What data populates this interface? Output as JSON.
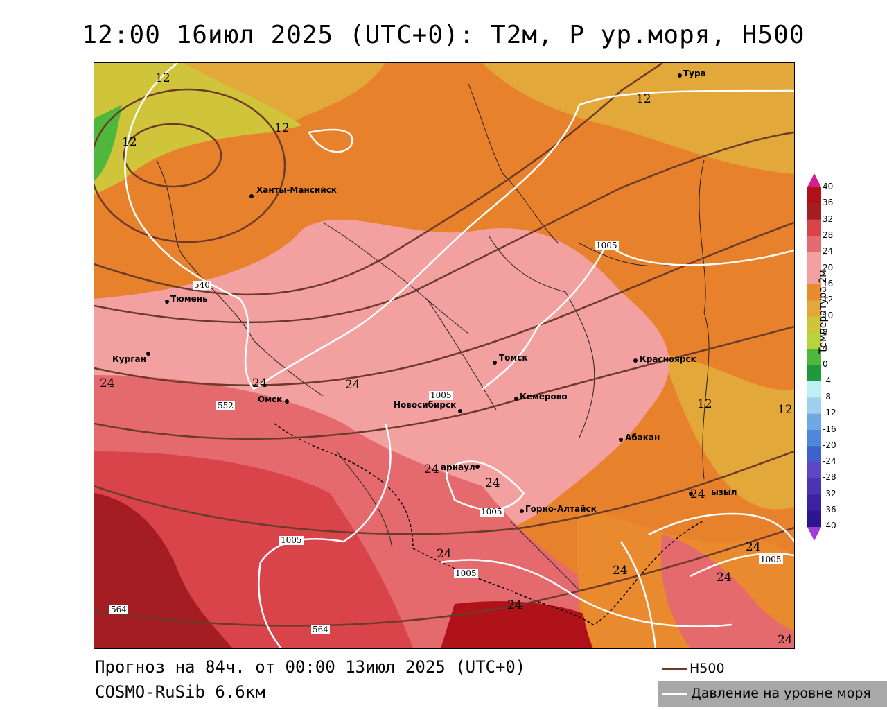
{
  "title": "12:00 16июл 2025 (UTC+0): T2м, P ур.моря, H500",
  "footer": {
    "forecast": "Прогноз на 84ч. от 00:00 13июл 2025 (UTC+0)",
    "model": "COSMO-RuSib 6.6км"
  },
  "legend": {
    "title": "Температура 2м",
    "ticks": [
      "40",
      "36",
      "32",
      "28",
      "24",
      "20",
      "16",
      "12",
      "10",
      "8",
      "4",
      "0",
      "-4",
      "-8",
      "-12",
      "-16",
      "-20",
      "-24",
      "-28",
      "-32",
      "-36",
      "-40"
    ],
    "colors": [
      "#b0121a",
      "#a31d22",
      "#d9444a",
      "#e56a6e",
      "#f3a0a0",
      "#f3a0a0",
      "#ea8a2e",
      "#e2a83a",
      "#cfc43a",
      "#b7d43c",
      "#4fb83c",
      "#1c9a3c",
      "#bfeff3",
      "#9fd0ee",
      "#6fa8e3",
      "#4f88d8",
      "#3f60cf",
      "#5e46c8",
      "#4b34b3",
      "#3a22a0",
      "#2d1590",
      "#3a1aa8"
    ],
    "top_arrow_color": "#d81b8e",
    "bottom_arrow_color": "#a33cd4"
  },
  "series_legend": {
    "h500": "H500",
    "pressure": "Давление на уровне моря"
  },
  "cities": [
    {
      "name": "Тура"
    },
    {
      "name": "Ханты-Мансийск"
    },
    {
      "name": "Тюмень"
    },
    {
      "name": "Курган"
    },
    {
      "name": "Омск"
    },
    {
      "name": "Томск"
    },
    {
      "name": "Красноярск"
    },
    {
      "name": "Новосибирск"
    },
    {
      "name": "Кемерово"
    },
    {
      "name": "Абакан"
    },
    {
      "name": "арнаул"
    },
    {
      "name": "Горно-Алтайск"
    },
    {
      "name": "ызыл"
    }
  ],
  "contour_labels": {
    "temperature": [
      "12",
      "12",
      "12",
      "12",
      "12",
      "12",
      "24",
      "24",
      "24",
      "24",
      "24",
      "24",
      "24",
      "24",
      "24",
      "24",
      "24",
      "24"
    ],
    "h500": [
      "540",
      "552",
      "564",
      "564"
    ],
    "pressure": [
      "1005",
      "1005",
      "1005",
      "1005",
      "1005",
      "1005"
    ]
  }
}
